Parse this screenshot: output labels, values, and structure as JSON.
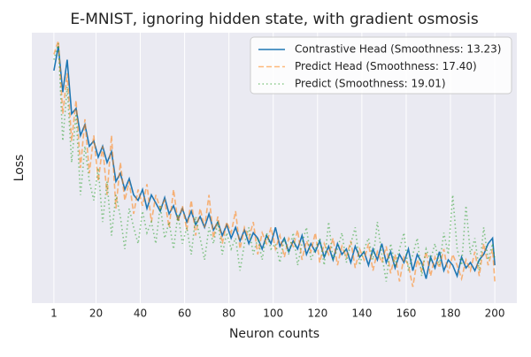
{
  "chart_data": {
    "type": "line",
    "title": "E-MNIST, ignoring hidden state, with gradient osmosis",
    "xlabel": "Neuron counts",
    "ylabel": "Loss",
    "x": [
      1,
      3,
      5,
      7,
      9,
      11,
      13,
      15,
      17,
      19,
      21,
      23,
      25,
      27,
      29,
      31,
      33,
      35,
      37,
      39,
      41,
      43,
      45,
      47,
      49,
      51,
      53,
      55,
      57,
      59,
      61,
      63,
      65,
      67,
      69,
      71,
      73,
      75,
      77,
      79,
      81,
      83,
      85,
      87,
      89,
      91,
      93,
      95,
      97,
      99,
      101,
      103,
      105,
      107,
      109,
      111,
      113,
      115,
      117,
      119,
      121,
      123,
      125,
      127,
      129,
      131,
      133,
      135,
      137,
      139,
      141,
      143,
      145,
      147,
      149,
      151,
      153,
      155,
      157,
      159,
      161,
      163,
      165,
      167,
      169,
      171,
      173,
      175,
      177,
      179,
      181,
      183,
      185,
      187,
      189,
      191,
      193,
      195,
      197,
      199,
      200
    ],
    "series": [
      {
        "name": "Contrastive Head (Smoothness: 13.23)",
        "color": "#1f77b4",
        "dash": "solid",
        "opacity": 1,
        "values": [
          86,
          95,
          78,
          90,
          70,
          72,
          62,
          66,
          58,
          60,
          54,
          58,
          52,
          56,
          45,
          48,
          42,
          46,
          40,
          38,
          42,
          35,
          40,
          37,
          34,
          39,
          33,
          36,
          31,
          35,
          30,
          34,
          29,
          32,
          28,
          33,
          27,
          30,
          25,
          29,
          24,
          28,
          23,
          27,
          22,
          26,
          24,
          20,
          25,
          22,
          28,
          21,
          24,
          19,
          23,
          20,
          25,
          18,
          22,
          19,
          23,
          17,
          21,
          16,
          22,
          18,
          20,
          15,
          21,
          17,
          19,
          14,
          20,
          16,
          22,
          15,
          19,
          13,
          18,
          15,
          20,
          12,
          18,
          15,
          9,
          17,
          13,
          19,
          12,
          16,
          14,
          10,
          17,
          13,
          15,
          12,
          16,
          18,
          22,
          24,
          14
        ]
      },
      {
        "name": "Predict Head (Smoothness: 17.40)",
        "color": "#ff7f0e",
        "dash": "dashed",
        "opacity": 0.55,
        "values": [
          92,
          97,
          70,
          85,
          60,
          75,
          50,
          68,
          48,
          62,
          45,
          58,
          40,
          62,
          35,
          52,
          38,
          45,
          33,
          42,
          36,
          44,
          30,
          40,
          35,
          38,
          28,
          42,
          30,
          36,
          27,
          38,
          25,
          35,
          28,
          40,
          24,
          32,
          22,
          30,
          26,
          34,
          20,
          28,
          24,
          30,
          18,
          26,
          22,
          28,
          20,
          25,
          17,
          24,
          21,
          27,
          16,
          23,
          19,
          26,
          15,
          22,
          18,
          24,
          14,
          21,
          17,
          23,
          13,
          20,
          16,
          22,
          12,
          19,
          15,
          21,
          11,
          18,
          8,
          17,
          14,
          6,
          16,
          12,
          19,
          10,
          17,
          13,
          20,
          11,
          18,
          14,
          9,
          16,
          12,
          19,
          10,
          22,
          14,
          20,
          8
        ]
      },
      {
        "name": "Predict (Smoothness: 19.01)",
        "color": "#2ca02c",
        "dash": "dotted",
        "opacity": 0.55,
        "values": [
          90,
          96,
          60,
          80,
          52,
          70,
          40,
          58,
          45,
          38,
          50,
          30,
          45,
          25,
          40,
          32,
          20,
          35,
          28,
          22,
          34,
          26,
          30,
          22,
          36,
          24,
          30,
          20,
          33,
          22,
          28,
          18,
          32,
          24,
          16,
          28,
          22,
          30,
          18,
          26,
          20,
          24,
          12,
          22,
          28,
          18,
          24,
          16,
          26,
          20,
          22,
          15,
          24,
          18,
          26,
          14,
          22,
          28,
          16,
          20,
          24,
          14,
          30,
          16,
          20,
          26,
          15,
          22,
          28,
          14,
          20,
          24,
          16,
          30,
          18,
          8,
          22,
          14,
          20,
          26,
          12,
          18,
          24,
          10,
          20,
          16,
          22,
          14,
          26,
          18,
          40,
          20,
          14,
          36,
          18,
          24,
          12,
          28,
          16,
          22,
          16
        ]
      }
    ],
    "xlim": [
      -8.95,
      209.95
    ],
    "ylim": [
      0,
      100
    ],
    "xticks": [
      1,
      20,
      40,
      60,
      80,
      100,
      120,
      140,
      160,
      180,
      200
    ],
    "grid": true,
    "legend": "upper right"
  }
}
